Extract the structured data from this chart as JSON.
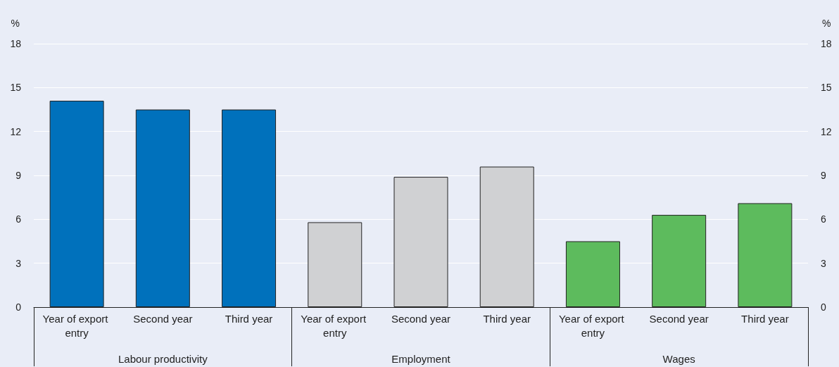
{
  "chart_data": {
    "type": "bar",
    "ylabel": "%",
    "y2label": "%",
    "categories": [
      "Year of export entry",
      "Second year",
      "Third year",
      "Year of export entry",
      "Second year",
      "Third year",
      "Year of export entry",
      "Second year",
      "Third year"
    ],
    "values": [
      14.1,
      13.5,
      13.5,
      5.8,
      8.9,
      9.6,
      4.5,
      6.3,
      7.1
    ],
    "colors": [
      "#0071bc",
      "#0071bc",
      "#0071bc",
      "#d0d1d3",
      "#d0d1d3",
      "#d0d1d3",
      "#5dbb5d",
      "#5dbb5d",
      "#5dbb5d"
    ],
    "annotations": [
      "Labour productivity",
      "Employment",
      "Wages"
    ],
    "ylim": [
      0,
      18
    ],
    "yticks": [
      0,
      3,
      6,
      9,
      12,
      15,
      18
    ],
    "y2lim": [
      0,
      18
    ],
    "y2ticks": [
      0,
      3,
      6,
      9,
      12,
      15,
      18
    ],
    "grid": "y"
  }
}
